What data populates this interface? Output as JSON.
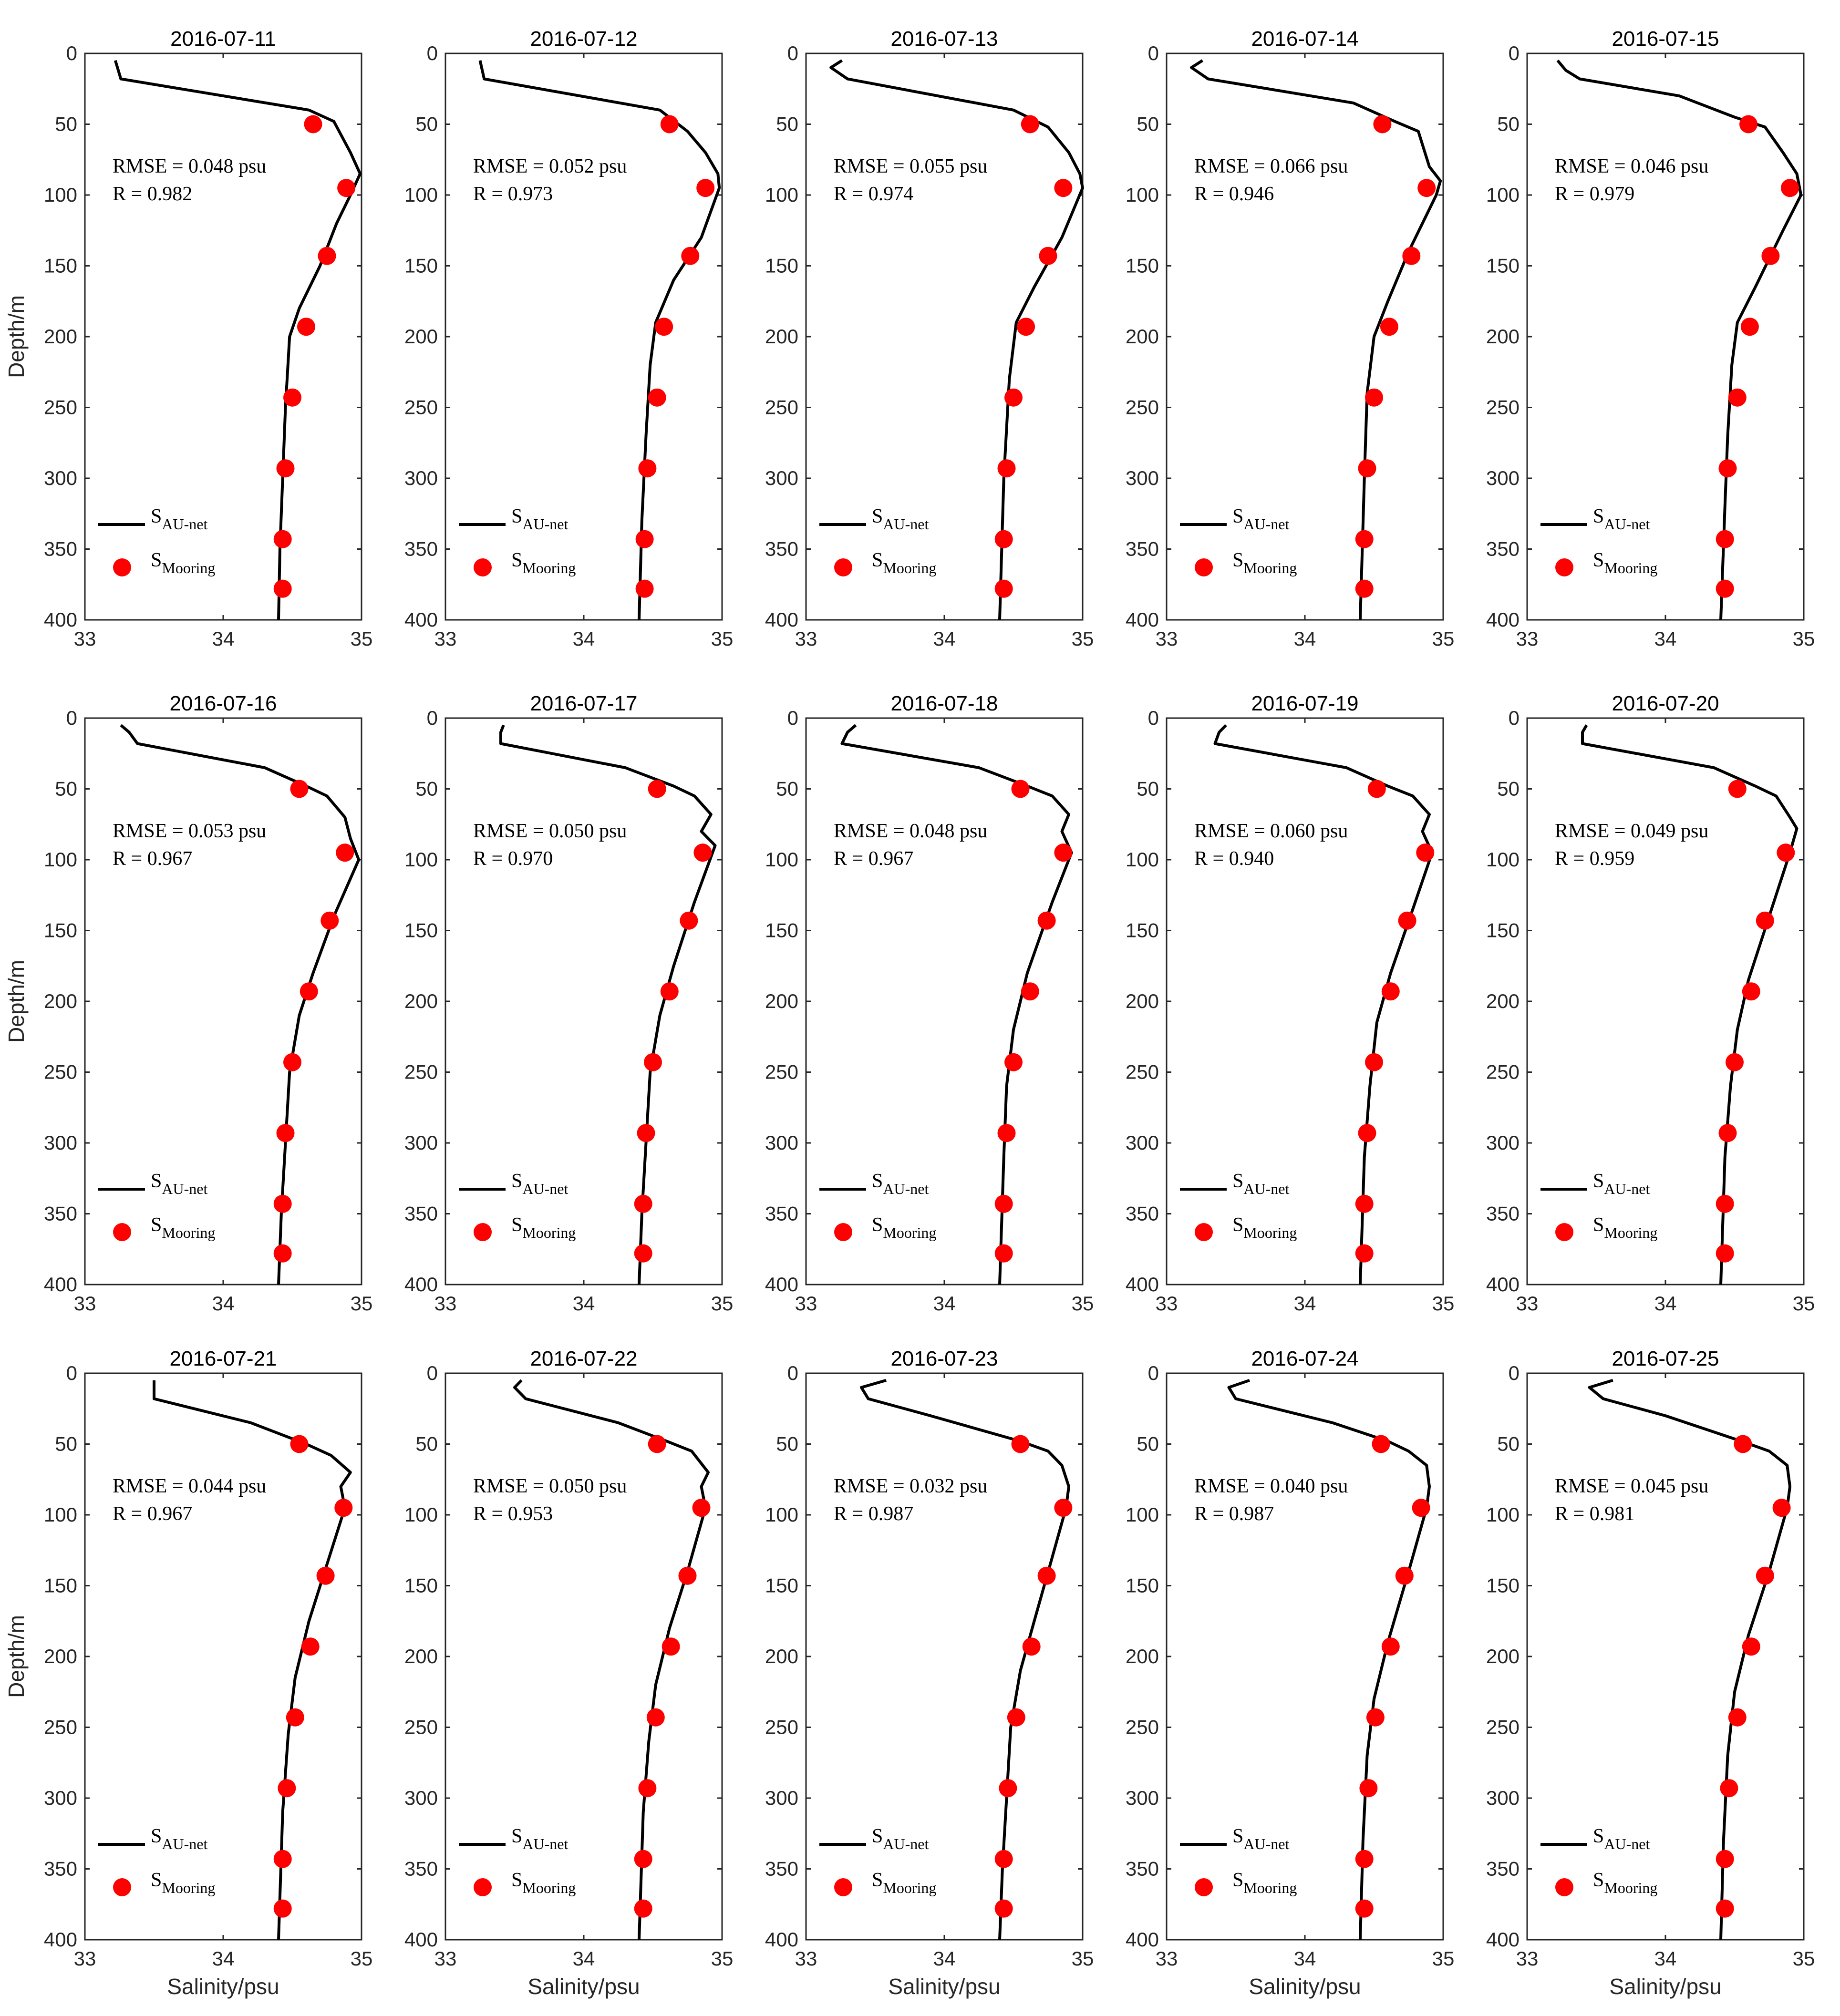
{
  "chart_data": {
    "type": "line",
    "x_axis": {
      "label": "Salinity/psu",
      "range": [
        33,
        35
      ],
      "ticks": [
        33,
        34,
        35
      ]
    },
    "y_axis": {
      "label": "Depth/m",
      "range": [
        0,
        400
      ],
      "ticks": [
        0,
        50,
        100,
        150,
        200,
        250,
        300,
        350,
        400
      ],
      "reversed": true
    },
    "legend": {
      "line": {
        "base": "S",
        "sub": "AU-net"
      },
      "points": {
        "base": "S",
        "sub": "Mooring"
      },
      "placement": "bottom-left"
    },
    "colors": {
      "line": "#000000",
      "points": "#ff0000"
    },
    "mooring_depths": [
      50,
      95,
      143,
      193,
      243,
      293,
      343,
      378
    ],
    "panels": [
      {
        "title": "2016-07-11",
        "rmse": "RMSE = 0.048 psu",
        "r": "R = 0.982",
        "line": [
          [
            33.22,
            5
          ],
          [
            33.26,
            18
          ],
          [
            34.62,
            40
          ],
          [
            34.8,
            48
          ],
          [
            34.92,
            70
          ],
          [
            34.99,
            85
          ],
          [
            34.92,
            100
          ],
          [
            34.82,
            120
          ],
          [
            34.7,
            150
          ],
          [
            34.55,
            180
          ],
          [
            34.48,
            200
          ],
          [
            34.45,
            250
          ],
          [
            34.43,
            300
          ],
          [
            34.41,
            350
          ],
          [
            34.4,
            400
          ]
        ],
        "points": [
          34.65,
          34.89,
          34.75,
          34.6,
          34.5,
          34.45,
          34.43,
          34.43
        ]
      },
      {
        "title": "2016-07-12",
        "rmse": "RMSE = 0.052 psu",
        "r": "R = 0.973",
        "line": [
          [
            33.25,
            5
          ],
          [
            33.28,
            18
          ],
          [
            34.55,
            40
          ],
          [
            34.75,
            55
          ],
          [
            34.88,
            70
          ],
          [
            34.97,
            85
          ],
          [
            34.98,
            95
          ],
          [
            34.85,
            130
          ],
          [
            34.65,
            160
          ],
          [
            34.52,
            190
          ],
          [
            34.48,
            220
          ],
          [
            34.45,
            270
          ],
          [
            34.42,
            330
          ],
          [
            34.4,
            400
          ]
        ],
        "points": [
          34.62,
          34.88,
          34.77,
          34.58,
          34.53,
          34.46,
          34.44,
          34.44
        ]
      },
      {
        "title": "2016-07-13",
        "rmse": "RMSE = 0.055 psu",
        "r": "R = 0.974",
        "line": [
          [
            33.26,
            5
          ],
          [
            33.18,
            10
          ],
          [
            33.3,
            18
          ],
          [
            34.5,
            40
          ],
          [
            34.75,
            52
          ],
          [
            34.9,
            70
          ],
          [
            34.98,
            85
          ],
          [
            35.0,
            95
          ],
          [
            34.85,
            130
          ],
          [
            34.65,
            165
          ],
          [
            34.52,
            190
          ],
          [
            34.47,
            230
          ],
          [
            34.43,
            300
          ],
          [
            34.4,
            400
          ]
        ],
        "points": [
          34.62,
          34.86,
          34.75,
          34.59,
          34.5,
          34.45,
          34.43,
          34.43
        ]
      },
      {
        "title": "2016-07-14",
        "rmse": "RMSE = 0.066 psu",
        "r": "R = 0.946",
        "line": [
          [
            33.26,
            5
          ],
          [
            33.18,
            10
          ],
          [
            33.3,
            18
          ],
          [
            34.35,
            35
          ],
          [
            34.65,
            48
          ],
          [
            34.82,
            55
          ],
          [
            34.9,
            80
          ],
          [
            34.98,
            90
          ],
          [
            34.95,
            100
          ],
          [
            34.75,
            140
          ],
          [
            34.6,
            175
          ],
          [
            34.5,
            200
          ],
          [
            34.45,
            240
          ],
          [
            34.43,
            300
          ],
          [
            34.4,
            400
          ]
        ],
        "points": [
          34.56,
          34.88,
          34.77,
          34.61,
          34.5,
          34.45,
          34.43,
          34.43
        ]
      },
      {
        "title": "2016-07-15",
        "rmse": "RMSE = 0.046 psu",
        "r": "R = 0.979",
        "line": [
          [
            33.22,
            5
          ],
          [
            33.28,
            12
          ],
          [
            33.38,
            18
          ],
          [
            34.1,
            30
          ],
          [
            34.5,
            45
          ],
          [
            34.72,
            52
          ],
          [
            34.85,
            70
          ],
          [
            34.95,
            85
          ],
          [
            34.98,
            100
          ],
          [
            34.85,
            125
          ],
          [
            34.65,
            165
          ],
          [
            34.52,
            190
          ],
          [
            34.48,
            220
          ],
          [
            34.45,
            270
          ],
          [
            34.43,
            320
          ],
          [
            34.4,
            400
          ]
        ],
        "points": [
          34.6,
          34.9,
          34.76,
          34.61,
          34.52,
          34.45,
          34.43,
          34.43
        ]
      },
      {
        "title": "2016-07-16",
        "rmse": "RMSE = 0.053 psu",
        "r": "R = 0.967",
        "line": [
          [
            33.26,
            5
          ],
          [
            33.32,
            10
          ],
          [
            33.38,
            18
          ],
          [
            34.3,
            35
          ],
          [
            34.6,
            48
          ],
          [
            34.75,
            55
          ],
          [
            34.88,
            70
          ],
          [
            34.92,
            85
          ],
          [
            34.98,
            100
          ],
          [
            34.8,
            140
          ],
          [
            34.65,
            180
          ],
          [
            34.55,
            210
          ],
          [
            34.48,
            250
          ],
          [
            34.45,
            300
          ],
          [
            34.42,
            350
          ],
          [
            34.4,
            400
          ]
        ],
        "points": [
          34.55,
          34.88,
          34.77,
          34.62,
          34.5,
          34.45,
          34.43,
          34.43
        ]
      },
      {
        "title": "2016-07-17",
        "rmse": "RMSE = 0.050 psu",
        "r": "R = 0.970",
        "line": [
          [
            33.42,
            5
          ],
          [
            33.4,
            10
          ],
          [
            33.4,
            18
          ],
          [
            34.3,
            35
          ],
          [
            34.65,
            48
          ],
          [
            34.8,
            55
          ],
          [
            34.92,
            68
          ],
          [
            34.85,
            80
          ],
          [
            34.95,
            90
          ],
          [
            34.8,
            130
          ],
          [
            34.65,
            175
          ],
          [
            34.55,
            210
          ],
          [
            34.48,
            250
          ],
          [
            34.45,
            300
          ],
          [
            34.42,
            350
          ],
          [
            34.4,
            400
          ]
        ],
        "points": [
          34.53,
          34.86,
          34.76,
          34.62,
          34.5,
          34.45,
          34.43,
          34.43
        ]
      },
      {
        "title": "2016-07-18",
        "rmse": "RMSE = 0.048 psu",
        "r": "R = 0.967",
        "line": [
          [
            33.36,
            5
          ],
          [
            33.3,
            10
          ],
          [
            33.26,
            18
          ],
          [
            34.25,
            35
          ],
          [
            34.6,
            48
          ],
          [
            34.78,
            55
          ],
          [
            34.9,
            68
          ],
          [
            34.85,
            80
          ],
          [
            34.92,
            95
          ],
          [
            34.78,
            130
          ],
          [
            34.6,
            180
          ],
          [
            34.5,
            220
          ],
          [
            34.45,
            260
          ],
          [
            34.43,
            310
          ],
          [
            34.4,
            400
          ]
        ],
        "points": [
          34.55,
          34.86,
          34.74,
          34.62,
          34.5,
          34.45,
          34.43,
          34.43
        ]
      },
      {
        "title": "2016-07-19",
        "rmse": "RMSE = 0.060 psu",
        "r": "R = 0.940",
        "line": [
          [
            33.43,
            5
          ],
          [
            33.38,
            10
          ],
          [
            33.35,
            18
          ],
          [
            34.3,
            35
          ],
          [
            34.6,
            48
          ],
          [
            34.78,
            55
          ],
          [
            34.9,
            68
          ],
          [
            34.85,
            80
          ],
          [
            34.92,
            95
          ],
          [
            34.78,
            135
          ],
          [
            34.62,
            180
          ],
          [
            34.52,
            215
          ],
          [
            34.47,
            260
          ],
          [
            34.43,
            310
          ],
          [
            34.4,
            400
          ]
        ],
        "points": [
          34.52,
          34.87,
          34.74,
          34.62,
          34.5,
          34.45,
          34.43,
          34.43
        ]
      },
      {
        "title": "2016-07-20",
        "rmse": "RMSE = 0.049 psu",
        "r": "R = 0.959",
        "line": [
          [
            33.43,
            5
          ],
          [
            33.4,
            10
          ],
          [
            33.4,
            18
          ],
          [
            34.35,
            35
          ],
          [
            34.65,
            48
          ],
          [
            34.8,
            55
          ],
          [
            34.9,
            70
          ],
          [
            34.95,
            78
          ],
          [
            34.9,
            95
          ],
          [
            34.75,
            140
          ],
          [
            34.6,
            185
          ],
          [
            34.52,
            220
          ],
          [
            34.47,
            260
          ],
          [
            34.43,
            310
          ],
          [
            34.4,
            400
          ]
        ],
        "points": [
          34.52,
          34.87,
          34.72,
          34.62,
          34.5,
          34.45,
          34.43,
          34.43
        ]
      },
      {
        "title": "2016-07-21",
        "rmse": "RMSE = 0.044 psu",
        "r": "R = 0.967",
        "line": [
          [
            33.5,
            5
          ],
          [
            33.5,
            18
          ],
          [
            34.2,
            35
          ],
          [
            34.6,
            50
          ],
          [
            34.78,
            58
          ],
          [
            34.92,
            70
          ],
          [
            34.85,
            80
          ],
          [
            34.88,
            95
          ],
          [
            34.75,
            135
          ],
          [
            34.62,
            175
          ],
          [
            34.52,
            215
          ],
          [
            34.47,
            255
          ],
          [
            34.43,
            310
          ],
          [
            34.4,
            400
          ]
        ],
        "points": [
          34.55,
          34.87,
          34.74,
          34.63,
          34.52,
          34.46,
          34.43,
          34.43
        ]
      },
      {
        "title": "2016-07-22",
        "rmse": "RMSE = 0.050 psu",
        "r": "R = 0.953",
        "line": [
          [
            33.55,
            5
          ],
          [
            33.5,
            10
          ],
          [
            33.58,
            18
          ],
          [
            34.25,
            35
          ],
          [
            34.6,
            48
          ],
          [
            34.78,
            55
          ],
          [
            34.9,
            70
          ],
          [
            34.85,
            80
          ],
          [
            34.88,
            95
          ],
          [
            34.75,
            140
          ],
          [
            34.62,
            180
          ],
          [
            34.52,
            220
          ],
          [
            34.47,
            260
          ],
          [
            34.43,
            310
          ],
          [
            34.4,
            400
          ]
        ],
        "points": [
          34.53,
          34.85,
          34.75,
          34.63,
          34.52,
          34.46,
          34.43,
          34.43
        ]
      },
      {
        "title": "2016-07-23",
        "rmse": "RMSE = 0.032 psu",
        "r": "R = 0.987",
        "line": [
          [
            33.58,
            5
          ],
          [
            33.4,
            10
          ],
          [
            33.45,
            18
          ],
          [
            33.9,
            30
          ],
          [
            34.55,
            48
          ],
          [
            34.75,
            55
          ],
          [
            34.85,
            65
          ],
          [
            34.9,
            80
          ],
          [
            34.88,
            95
          ],
          [
            34.78,
            130
          ],
          [
            34.65,
            175
          ],
          [
            34.55,
            210
          ],
          [
            34.48,
            250
          ],
          [
            34.45,
            300
          ],
          [
            34.42,
            350
          ],
          [
            34.4,
            400
          ]
        ],
        "points": [
          34.55,
          34.86,
          34.74,
          34.63,
          34.52,
          34.46,
          34.43,
          34.43
        ]
      },
      {
        "title": "2016-07-24",
        "rmse": "RMSE = 0.040 psu",
        "r": "R = 0.987",
        "line": [
          [
            33.6,
            5
          ],
          [
            33.45,
            10
          ],
          [
            33.5,
            18
          ],
          [
            34.2,
            35
          ],
          [
            34.6,
            48
          ],
          [
            34.75,
            55
          ],
          [
            34.88,
            65
          ],
          [
            34.9,
            80
          ],
          [
            34.88,
            95
          ],
          [
            34.75,
            140
          ],
          [
            34.6,
            190
          ],
          [
            34.5,
            230
          ],
          [
            34.45,
            270
          ],
          [
            34.42,
            330
          ],
          [
            34.4,
            400
          ]
        ],
        "points": [
          34.55,
          34.84,
          34.72,
          34.62,
          34.51,
          34.46,
          34.43,
          34.43
        ]
      },
      {
        "title": "2016-07-25",
        "rmse": "RMSE = 0.045 psu",
        "r": "R = 0.981",
        "line": [
          [
            33.62,
            5
          ],
          [
            33.45,
            10
          ],
          [
            33.55,
            18
          ],
          [
            34.0,
            30
          ],
          [
            34.55,
            48
          ],
          [
            34.75,
            55
          ],
          [
            34.88,
            65
          ],
          [
            34.9,
            80
          ],
          [
            34.88,
            95
          ],
          [
            34.75,
            140
          ],
          [
            34.6,
            185
          ],
          [
            34.5,
            225
          ],
          [
            34.45,
            270
          ],
          [
            34.42,
            330
          ],
          [
            34.4,
            400
          ]
        ],
        "points": [
          34.56,
          34.84,
          34.72,
          34.62,
          34.52,
          34.46,
          34.43,
          34.43
        ]
      }
    ]
  }
}
